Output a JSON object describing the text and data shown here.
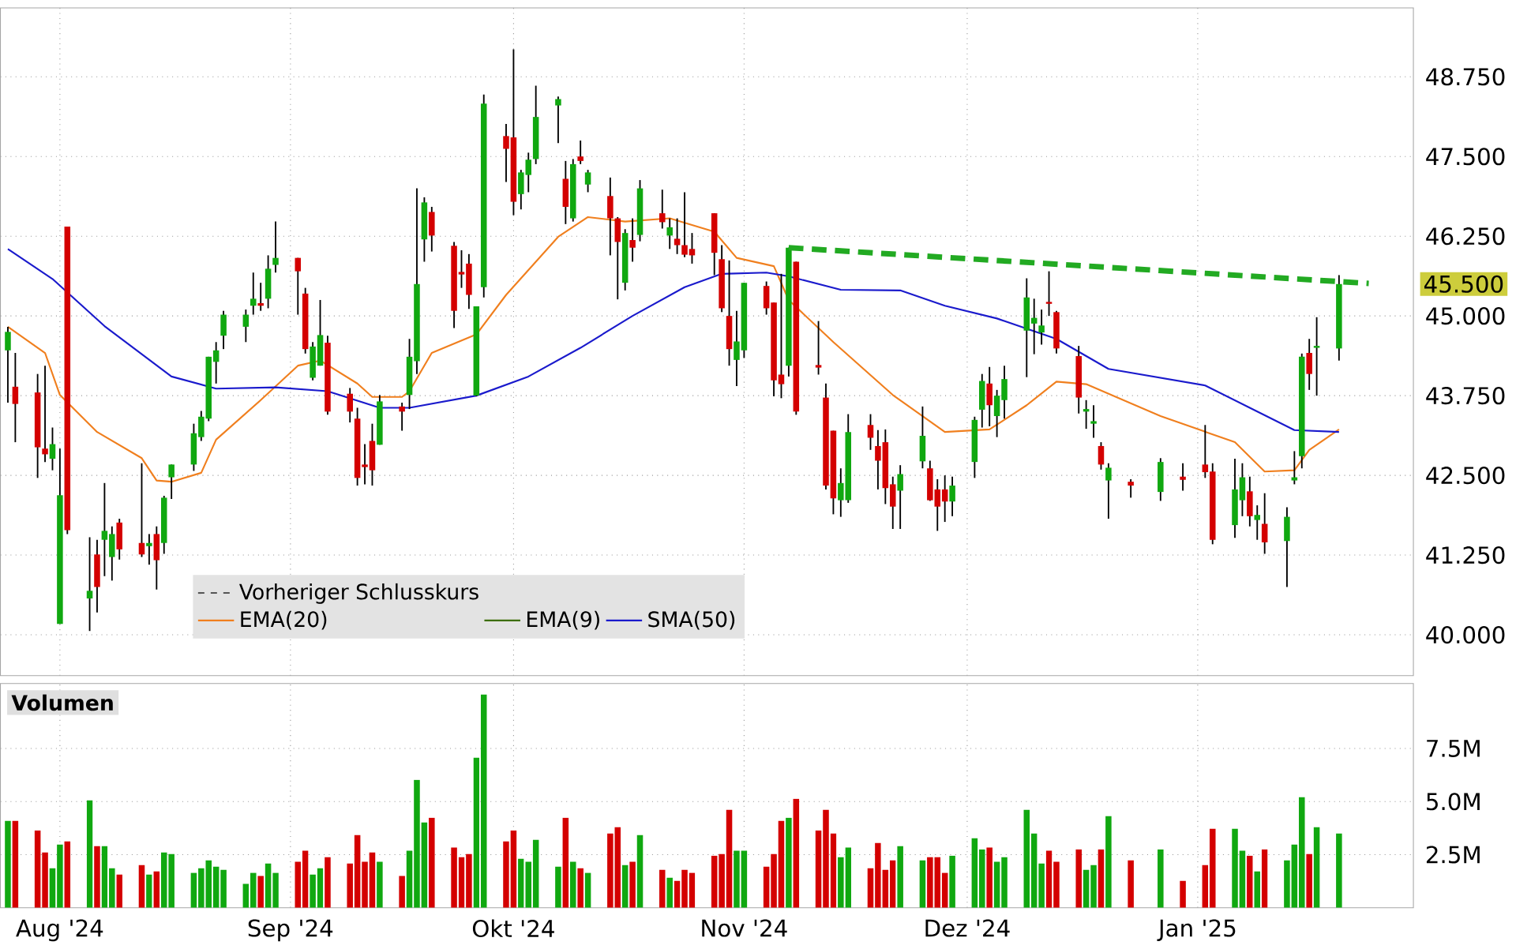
{
  "chart_data": [
    {
      "type": "candlestick",
      "x": [
        "2024-07-25",
        "2024-07-26",
        "2024-07-29",
        "2024-07-30",
        "2024-07-31",
        "2024-08-01",
        "2024-08-02",
        "2024-08-05",
        "2024-08-06",
        "2024-08-07",
        "2024-08-08",
        "2024-08-09",
        "2024-08-12",
        "2024-08-13",
        "2024-08-14",
        "2024-08-15",
        "2024-08-16",
        "2024-08-19",
        "2024-08-20",
        "2024-08-21",
        "2024-08-22",
        "2024-08-23",
        "2024-08-26",
        "2024-08-27",
        "2024-08-28",
        "2024-08-29",
        "2024-08-30",
        "2024-09-02",
        "2024-09-03",
        "2024-09-04",
        "2024-09-05",
        "2024-09-06",
        "2024-09-09",
        "2024-09-10",
        "2024-09-11",
        "2024-09-12",
        "2024-09-13",
        "2024-09-16",
        "2024-09-17",
        "2024-09-18",
        "2024-09-19",
        "2024-09-20",
        "2024-09-23",
        "2024-09-24",
        "2024-09-25",
        "2024-09-26",
        "2024-09-27",
        "2024-09-30",
        "2024-10-01",
        "2024-10-02",
        "2024-10-03",
        "2024-10-04",
        "2024-10-07",
        "2024-10-08",
        "2024-10-09",
        "2024-10-10",
        "2024-10-11",
        "2024-10-14",
        "2024-10-15",
        "2024-10-16",
        "2024-10-17",
        "2024-10-18",
        "2024-10-21",
        "2024-10-22",
        "2024-10-23",
        "2024-10-24",
        "2024-10-25",
        "2024-10-28",
        "2024-10-29",
        "2024-10-30",
        "2024-10-31",
        "2024-11-01",
        "2024-11-04",
        "2024-11-05",
        "2024-11-06",
        "2024-11-07",
        "2024-11-08",
        "2024-11-11",
        "2024-11-12",
        "2024-11-13",
        "2024-11-14",
        "2024-11-15",
        "2024-11-18",
        "2024-11-19",
        "2024-11-20",
        "2024-11-21",
        "2024-11-22",
        "2024-11-25",
        "2024-11-26",
        "2024-11-27",
        "2024-11-28",
        "2024-11-29",
        "2024-12-02",
        "2024-12-03",
        "2024-12-04",
        "2024-12-05",
        "2024-12-06",
        "2024-12-09",
        "2024-12-10",
        "2024-12-11",
        "2024-12-12",
        "2024-12-13",
        "2024-12-16",
        "2024-12-17",
        "2024-12-18",
        "2024-12-19",
        "2024-12-20",
        "2024-12-23",
        "2024-12-27",
        "2024-12-30",
        "2025-01-02",
        "2025-01-03",
        "2025-01-06",
        "2025-01-07",
        "2025-01-08",
        "2025-01-09",
        "2025-01-10",
        "2025-01-13",
        "2025-01-14",
        "2025-01-15",
        "2025-01-16",
        "2025-01-17",
        "2025-01-20"
      ],
      "ohlc": [
        [
          44.46,
          44.83,
          43.64,
          44.75
        ],
        [
          43.89,
          44.42,
          43.02,
          43.62
        ],
        [
          43.8,
          44.09,
          42.46,
          42.94
        ],
        [
          42.92,
          44.22,
          42.71,
          42.83
        ],
        [
          42.76,
          43.25,
          42.58,
          42.99
        ],
        [
          40.17,
          42.92,
          40.17,
          42.19
        ],
        [
          46.4,
          46.4,
          41.58,
          41.64
        ],
        [
          40.57,
          41.53,
          40.06,
          40.69
        ],
        [
          41.26,
          41.49,
          40.35,
          40.75
        ],
        [
          41.49,
          42.38,
          40.92,
          41.63
        ],
        [
          41.22,
          41.7,
          40.85,
          41.58
        ],
        [
          41.76,
          41.82,
          41.18,
          41.34
        ],
        [
          41.44,
          42.69,
          41.22,
          41.26
        ],
        [
          41.39,
          41.58,
          41.1,
          41.44
        ],
        [
          41.58,
          41.7,
          40.71,
          41.17
        ],
        [
          41.44,
          42.18,
          41.27,
          42.15
        ],
        [
          42.47,
          42.67,
          42.13,
          42.67
        ],
        [
          42.67,
          43.31,
          42.57,
          43.16
        ],
        [
          43.1,
          43.51,
          43.04,
          43.42
        ],
        [
          43.39,
          44.36,
          43.35,
          44.36
        ],
        [
          44.28,
          44.59,
          43.94,
          44.46
        ],
        [
          44.69,
          45.08,
          44.48,
          45.02
        ],
        [
          44.83,
          45.1,
          44.59,
          45.02
        ],
        [
          45.16,
          45.68,
          45.02,
          45.27
        ],
        [
          45.2,
          45.52,
          45.08,
          45.16
        ],
        [
          45.27,
          45.95,
          45.12,
          45.74
        ],
        [
          45.8,
          46.48,
          45.68,
          45.91
        ],
        [
          45.91,
          45.91,
          45.02,
          45.7
        ],
        [
          45.35,
          45.44,
          44.41,
          44.48
        ],
        [
          44.03,
          44.59,
          43.99,
          44.52
        ],
        [
          44.22,
          45.25,
          44.22,
          44.7
        ],
        [
          44.58,
          44.69,
          43.45,
          43.5
        ],
        [
          43.78,
          43.87,
          43.33,
          43.5
        ],
        [
          43.39,
          43.56,
          42.34,
          42.46
        ],
        [
          42.67,
          42.99,
          42.36,
          42.63
        ],
        [
          43.04,
          43.31,
          42.34,
          42.58
        ],
        [
          42.98,
          43.76,
          42.98,
          43.66
        ],
        [
          43.58,
          43.64,
          43.2,
          43.5
        ],
        [
          43.76,
          44.64,
          43.54,
          44.36
        ],
        [
          44.29,
          47.0,
          44.09,
          45.5
        ],
        [
          46.2,
          46.86,
          45.85,
          46.78
        ],
        [
          46.63,
          46.71,
          46.01,
          46.26
        ],
        [
          46.1,
          46.16,
          44.81,
          45.08
        ],
        [
          45.69,
          46.03,
          45.44,
          45.65
        ],
        [
          45.82,
          45.97,
          45.11,
          45.33
        ],
        [
          43.75,
          45.15,
          43.74,
          45.15
        ],
        [
          45.45,
          48.47,
          45.29,
          48.33
        ],
        [
          47.82,
          48.01,
          47.1,
          47.62
        ],
        [
          47.8,
          49.18,
          46.58,
          46.79
        ],
        [
          46.91,
          47.29,
          46.67,
          47.25
        ],
        [
          47.21,
          47.56,
          46.94,
          47.45
        ],
        [
          47.46,
          48.61,
          47.38,
          48.12
        ],
        [
          48.3,
          48.44,
          47.71,
          48.4
        ],
        [
          47.15,
          47.43,
          46.44,
          46.71
        ],
        [
          46.53,
          47.46,
          46.48,
          47.38
        ],
        [
          47.5,
          47.75,
          47.38,
          47.43
        ],
        [
          47.06,
          47.29,
          46.94,
          47.25
        ],
        [
          46.88,
          47.17,
          45.95,
          46.53
        ],
        [
          46.53,
          46.55,
          45.26,
          46.16
        ],
        [
          45.52,
          46.36,
          45.4,
          46.3
        ],
        [
          46.19,
          46.53,
          45.85,
          46.07
        ],
        [
          46.27,
          47.13,
          46.17,
          47.0
        ],
        [
          46.61,
          46.98,
          46.37,
          46.47
        ],
        [
          46.26,
          46.53,
          46.05,
          46.39
        ],
        [
          46.21,
          46.53,
          45.97,
          46.11
        ],
        [
          46.11,
          46.94,
          45.92,
          45.96
        ],
        [
          46.05,
          46.3,
          45.82,
          45.95
        ],
        [
          46.61,
          46.61,
          45.64,
          45.99
        ],
        [
          45.89,
          46.11,
          45.06,
          45.12
        ],
        [
          45.0,
          45.87,
          44.22,
          44.48
        ],
        [
          44.31,
          45.08,
          43.9,
          44.6
        ],
        [
          44.46,
          45.52,
          44.34,
          45.52
        ],
        [
          45.47,
          45.54,
          45.02,
          45.12
        ],
        [
          45.21,
          45.21,
          43.74,
          43.99
        ],
        [
          44.08,
          45.66,
          43.71,
          43.93
        ],
        [
          44.22,
          46.07,
          44.05,
          46.07
        ],
        [
          45.85,
          45.85,
          43.45,
          43.5
        ],
        [
          44.23,
          44.92,
          44.08,
          44.19
        ],
        [
          43.72,
          43.94,
          42.28,
          42.34
        ],
        [
          43.2,
          43.2,
          41.89,
          42.14
        ],
        [
          42.11,
          42.61,
          41.85,
          42.38
        ],
        [
          42.11,
          43.46,
          42.07,
          43.18
        ],
        [
          43.29,
          43.46,
          42.9,
          43.09
        ],
        [
          42.96,
          43.21,
          42.28,
          42.73
        ],
        [
          43.02,
          43.22,
          42.05,
          42.3
        ],
        [
          42.36,
          42.48,
          41.66,
          42.01
        ],
        [
          42.26,
          42.66,
          41.66,
          42.52
        ],
        [
          42.72,
          43.58,
          42.61,
          43.12
        ],
        [
          42.61,
          42.73,
          42.1,
          42.11
        ],
        [
          42.28,
          42.44,
          41.63,
          42.01
        ],
        [
          42.28,
          42.5,
          41.77,
          42.09
        ],
        [
          42.09,
          42.48,
          41.86,
          42.34
        ],
        [
          42.71,
          43.42,
          42.46,
          43.37
        ],
        [
          43.53,
          44.09,
          43.25,
          43.98
        ],
        [
          43.94,
          44.2,
          43.27,
          43.6
        ],
        [
          43.43,
          43.84,
          43.1,
          43.75
        ],
        [
          43.68,
          44.22,
          43.39,
          44.01
        ],
        [
          44.77,
          45.59,
          44.04,
          45.29
        ],
        [
          44.88,
          45.27,
          44.4,
          44.97
        ],
        [
          44.74,
          45.1,
          44.55,
          44.85
        ],
        [
          45.22,
          45.7,
          45.0,
          45.19
        ],
        [
          45.06,
          45.08,
          44.41,
          44.49
        ],
        [
          44.37,
          44.53,
          43.47,
          43.72
        ],
        [
          43.5,
          43.68,
          43.23,
          43.54
        ],
        [
          43.31,
          43.6,
          43.09,
          43.35
        ],
        [
          42.96,
          43.02,
          42.59,
          42.67
        ],
        [
          42.42,
          42.69,
          41.82,
          42.62
        ],
        [
          42.4,
          42.44,
          42.15,
          42.34
        ],
        [
          42.24,
          42.77,
          42.1,
          42.71
        ],
        [
          42.48,
          42.69,
          42.26,
          42.43
        ],
        [
          42.67,
          43.29,
          42.46,
          42.55
        ],
        [
          42.56,
          42.69,
          41.42,
          41.49
        ],
        [
          41.72,
          42.76,
          41.52,
          42.28
        ],
        [
          42.11,
          42.69,
          41.86,
          42.47
        ],
        [
          42.25,
          42.48,
          41.7,
          41.86
        ],
        [
          41.8,
          42.03,
          41.49,
          41.88
        ],
        [
          41.74,
          42.22,
          41.27,
          41.45
        ],
        [
          41.47,
          42.0,
          40.75,
          41.85
        ],
        [
          42.42,
          42.88,
          42.36,
          42.47
        ],
        [
          42.8,
          44.41,
          42.61,
          44.36
        ],
        [
          44.42,
          44.64,
          43.84,
          44.09
        ],
        [
          44.5,
          44.98,
          43.75,
          44.53
        ],
        [
          44.49,
          45.64,
          44.3,
          45.5
        ]
      ],
      "colors": [
        "#10a810",
        "#d40000",
        "#d40000",
        "#d40000",
        "#10a810",
        "#10a810",
        "#d40000",
        "#10a810",
        "#d40000",
        "#10a810",
        "#10a810",
        "#d40000",
        "#d40000",
        "#10a810",
        "#d40000",
        "#10a810",
        "#10a810",
        "#10a810",
        "#10a810",
        "#10a810",
        "#10a810",
        "#10a810",
        "#10a810",
        "#10a810",
        "#d40000",
        "#10a810",
        "#10a810",
        "#d40000",
        "#d40000",
        "#10a810",
        "#10a810",
        "#d40000",
        "#d40000",
        "#d40000",
        "#d40000",
        "#d40000",
        "#10a810",
        "#d40000",
        "#10a810",
        "#10a810",
        "#10a810",
        "#d40000",
        "#d40000",
        "#d40000",
        "#d40000",
        "#10a810",
        "#10a810",
        "#d40000",
        "#d40000",
        "#10a810",
        "#10a810",
        "#10a810",
        "#10a810",
        "#d40000",
        "#10a810",
        "#d40000",
        "#10a810",
        "#d40000",
        "#d40000",
        "#10a810",
        "#d40000",
        "#10a810",
        "#d40000",
        "#10a810",
        "#d40000",
        "#d40000",
        "#d40000",
        "#d40000",
        "#d40000",
        "#d40000",
        "#10a810",
        "#10a810",
        "#d40000",
        "#d40000",
        "#d40000",
        "#10a810",
        "#d40000",
        "#d40000",
        "#d40000",
        "#d40000",
        "#10a810",
        "#10a810",
        "#d40000",
        "#d40000",
        "#d40000",
        "#d40000",
        "#10a810",
        "#10a810",
        "#d40000",
        "#d40000",
        "#d40000",
        "#10a810",
        "#10a810",
        "#10a810",
        "#d40000",
        "#10a810",
        "#10a810",
        "#10a810",
        "#10a810",
        "#10a810",
        "#d40000",
        "#d40000",
        "#d40000",
        "#10a810",
        "#10a810",
        "#d40000",
        "#10a810",
        "#d40000",
        "#10a810",
        "#d40000",
        "#d40000",
        "#d40000",
        "#10a810",
        "#10a810",
        "#d40000",
        "#10a810",
        "#d40000",
        "#10a810",
        "#10a810",
        "#10a810",
        "#d40000",
        "#10a810",
        "#10a810"
      ],
      "series": [
        {
          "type": "line",
          "name": "Vorheriger Schlusskurs",
          "color": "#555555",
          "line_style": "dashed",
          "values": [
            null,
            null,
            null,
            null,
            null,
            null,
            null,
            null,
            null,
            null,
            null,
            null,
            null,
            null,
            null,
            null,
            null,
            null,
            null,
            null,
            null,
            null,
            null,
            null,
            null,
            null,
            null,
            null,
            null,
            null,
            null,
            null,
            null,
            null,
            null,
            null,
            null,
            null,
            null,
            null,
            null,
            null,
            null,
            null,
            null,
            null,
            null,
            null,
            null,
            null,
            null,
            null,
            null,
            null,
            null,
            null,
            null,
            null,
            null,
            null,
            null,
            null,
            null,
            null,
            null,
            null,
            null,
            null,
            null,
            null,
            null,
            null,
            null,
            null,
            null,
            null,
            null,
            null,
            null,
            null,
            null,
            null,
            null,
            null,
            null,
            null,
            null,
            null,
            null,
            null,
            null,
            null,
            null,
            null,
            null,
            null,
            null,
            null,
            null,
            null,
            null,
            null,
            null,
            null,
            null,
            null,
            null,
            null,
            null,
            null,
            null,
            null,
            null,
            null,
            null,
            null,
            null,
            null,
            null,
            null,
            null,
            null,
            null
          ]
        },
        {
          "type": "line",
          "name": "EMA(20)",
          "color": "#f07f1e",
          "x": [
            "2024-07-25",
            "2024-07-30",
            "2024-08-01",
            "2024-08-06",
            "2024-08-12",
            "2024-08-14",
            "2024-08-16",
            "2024-08-20",
            "2024-08-22",
            "2024-08-28",
            "2024-09-02",
            "2024-09-05",
            "2024-09-10",
            "2024-09-12",
            "2024-09-16",
            "2024-09-17",
            "2024-09-20",
            "2024-09-26",
            "2024-09-30",
            "2024-10-07",
            "2024-10-11",
            "2024-10-16",
            "2024-10-22",
            "2024-10-28",
            "2024-10-31",
            "2024-11-05",
            "2024-11-07",
            "2024-11-13",
            "2024-11-21",
            "2024-11-28",
            "2024-12-04",
            "2024-12-09",
            "2024-12-13",
            "2024-12-17",
            "2024-12-27",
            "2025-01-06",
            "2025-01-10",
            "2025-01-14",
            "2025-01-16",
            "2025-01-20"
          ],
          "values": [
            44.83,
            44.42,
            43.76,
            43.18,
            42.77,
            42.42,
            42.4,
            42.54,
            43.06,
            43.68,
            44.22,
            44.3,
            43.94,
            43.73,
            43.73,
            43.82,
            44.42,
            44.71,
            45.33,
            46.24,
            46.55,
            46.48,
            46.53,
            46.32,
            45.91,
            45.78,
            45.25,
            44.59,
            43.76,
            43.18,
            43.22,
            43.6,
            43.97,
            43.93,
            43.43,
            43.02,
            42.56,
            42.58,
            42.9,
            43.22
          ]
        },
        {
          "type": "line",
          "name": "EMA(9)",
          "color": "#3c6e00",
          "values": [
            null,
            null,
            null,
            null,
            null,
            null,
            null,
            null,
            null,
            null,
            null,
            null,
            null,
            null,
            null,
            null,
            null,
            null,
            null,
            null,
            null,
            null,
            null,
            null,
            null,
            null,
            null,
            null,
            null,
            null,
            null,
            null,
            null,
            null,
            null,
            null,
            null,
            null,
            null,
            null,
            null,
            null,
            null,
            null,
            null,
            null,
            null,
            null,
            null,
            null,
            null,
            null,
            null,
            null,
            null,
            null,
            null,
            null,
            null,
            null,
            null,
            null,
            null,
            null,
            null,
            null,
            null,
            null,
            null,
            null,
            null,
            null,
            null,
            null,
            null,
            null,
            null,
            null,
            null,
            null,
            null,
            null,
            null,
            null,
            null,
            null,
            null,
            null,
            null,
            null,
            null,
            null,
            null,
            null,
            null,
            null,
            null,
            null,
            null,
            null,
            null,
            null,
            null,
            null,
            null,
            null,
            null,
            null,
            null,
            null,
            null,
            null,
            null,
            null,
            null,
            null,
            null,
            null,
            null,
            null,
            null,
            null,
            null
          ]
        },
        {
          "type": "line",
          "name": "SMA(50)",
          "color": "#1a1acc",
          "x": [
            "2024-07-25",
            "2024-07-31",
            "2024-08-07",
            "2024-08-16",
            "2024-08-22",
            "2024-08-30",
            "2024-09-06",
            "2024-09-13",
            "2024-09-17",
            "2024-09-26",
            "2024-10-03",
            "2024-10-10",
            "2024-10-17",
            "2024-10-24",
            "2024-10-29",
            "2024-11-04",
            "2024-11-07",
            "2024-11-14",
            "2024-11-22",
            "2024-11-28",
            "2024-12-05",
            "2024-12-13",
            "2024-12-20",
            "2025-01-02",
            "2025-01-08",
            "2025-01-14",
            "2025-01-20"
          ],
          "values": [
            46.05,
            45.58,
            44.84,
            44.05,
            43.86,
            43.88,
            43.82,
            43.56,
            43.56,
            43.75,
            44.05,
            44.5,
            45.0,
            45.45,
            45.66,
            45.68,
            45.62,
            45.41,
            45.4,
            45.16,
            44.96,
            44.64,
            44.17,
            43.91,
            43.56,
            43.21,
            43.18
          ]
        },
        {
          "type": "line",
          "color": "#22aa22",
          "line_style": "dashed",
          "x": [
            "2024-11-07",
            "2025-01-24"
          ],
          "values": [
            46.07,
            45.51
          ]
        }
      ],
      "annotations": [
        "45.500"
      ],
      "xlim": [
        "2024-07-24",
        "2025-01-30"
      ],
      "ylim": [
        39.36,
        49.83
      ],
      "xticks": [
        {
          "value": "2024-08-01",
          "label": null
        },
        {
          "value": "2024-09-01",
          "label": null
        },
        {
          "value": "2024-10-01",
          "label": null
        },
        {
          "value": "2024-11-01",
          "label": null
        },
        {
          "value": "2024-12-01",
          "label": null
        },
        {
          "value": "2025-01-01",
          "label": null
        }
      ],
      "yticks": [
        {
          "value": 40,
          "label": "40.000"
        },
        {
          "value": 41.25,
          "label": "41.250"
        },
        {
          "value": 42.5,
          "label": "42.500"
        },
        {
          "value": 43.75,
          "label": "43.750"
        },
        {
          "value": 45,
          "label": "45.000"
        },
        {
          "value": 46.25,
          "label": "46.250"
        },
        {
          "value": 47.5,
          "label": "47.500"
        },
        {
          "value": 48.75,
          "label": "48.750"
        }
      ],
      "grid": true,
      "legend": "bottom left",
      "tick_labels": "y"
    },
    {
      "type": "bar",
      "title": "Volumen",
      "x": [
        "2024-07-25",
        "2024-07-26",
        "2024-07-29",
        "2024-07-30",
        "2024-07-31",
        "2024-08-01",
        "2024-08-02",
        "2024-08-05",
        "2024-08-06",
        "2024-08-07",
        "2024-08-08",
        "2024-08-09",
        "2024-08-12",
        "2024-08-13",
        "2024-08-14",
        "2024-08-15",
        "2024-08-16",
        "2024-08-19",
        "2024-08-20",
        "2024-08-21",
        "2024-08-22",
        "2024-08-23",
        "2024-08-26",
        "2024-08-27",
        "2024-08-28",
        "2024-08-29",
        "2024-08-30",
        "2024-09-02",
        "2024-09-03",
        "2024-09-04",
        "2024-09-05",
        "2024-09-06",
        "2024-09-09",
        "2024-09-10",
        "2024-09-11",
        "2024-09-12",
        "2024-09-13",
        "2024-09-16",
        "2024-09-17",
        "2024-09-18",
        "2024-09-19",
        "2024-09-20",
        "2024-09-23",
        "2024-09-24",
        "2024-09-25",
        "2024-09-26",
        "2024-09-27",
        "2024-09-30",
        "2024-10-01",
        "2024-10-02",
        "2024-10-03",
        "2024-10-04",
        "2024-10-07",
        "2024-10-08",
        "2024-10-09",
        "2024-10-10",
        "2024-10-11",
        "2024-10-14",
        "2024-10-15",
        "2024-10-16",
        "2024-10-17",
        "2024-10-18",
        "2024-10-21",
        "2024-10-22",
        "2024-10-23",
        "2024-10-24",
        "2024-10-25",
        "2024-10-28",
        "2024-10-29",
        "2024-10-30",
        "2024-10-31",
        "2024-11-01",
        "2024-11-04",
        "2024-11-05",
        "2024-11-06",
        "2024-11-07",
        "2024-11-08",
        "2024-11-11",
        "2024-11-12",
        "2024-11-13",
        "2024-11-14",
        "2024-11-15",
        "2024-11-18",
        "2024-11-19",
        "2024-11-20",
        "2024-11-21",
        "2024-11-22",
        "2024-11-25",
        "2024-11-26",
        "2024-11-27",
        "2024-11-28",
        "2024-11-29",
        "2024-12-02",
        "2024-12-03",
        "2024-12-04",
        "2024-12-05",
        "2024-12-06",
        "2024-12-09",
        "2024-12-10",
        "2024-12-11",
        "2024-12-12",
        "2024-12-13",
        "2024-12-16",
        "2024-12-17",
        "2024-12-18",
        "2024-12-19",
        "2024-12-20",
        "2024-12-23",
        "2024-12-27",
        "2024-12-30",
        "2025-01-02",
        "2025-01-03",
        "2025-01-06",
        "2025-01-07",
        "2025-01-08",
        "2025-01-09",
        "2025-01-10",
        "2025-01-13",
        "2025-01-14",
        "2025-01-15",
        "2025-01-16",
        "2025-01-17",
        "2025-01-20"
      ],
      "values": [
        4.09,
        4.09,
        3.64,
        2.6,
        1.86,
        2.97,
        3.12,
        5.06,
        2.9,
        2.9,
        1.86,
        1.56,
        2.01,
        1.56,
        1.71,
        2.6,
        2.53,
        1.64,
        1.86,
        2.23,
        1.93,
        1.78,
        1.12,
        1.64,
        1.49,
        2.08,
        1.64,
        2.16,
        2.68,
        1.56,
        1.86,
        2.38,
        2.08,
        3.42,
        2.16,
        2.6,
        2.16,
        1.49,
        2.68,
        6.02,
        4.01,
        4.24,
        2.83,
        2.38,
        2.53,
        7.06,
        10.04,
        3.12,
        3.64,
        2.3,
        2.16,
        3.2,
        1.93,
        4.24,
        2.16,
        1.86,
        1.64,
        3.49,
        3.79,
        2.01,
        2.16,
        3.42,
        1.78,
        1.41,
        1.26,
        1.78,
        1.64,
        2.45,
        2.53,
        4.61,
        2.68,
        2.68,
        1.93,
        2.53,
        4.09,
        4.24,
        5.13,
        3.64,
        4.61,
        3.49,
        2.38,
        2.83,
        1.86,
        3.05,
        1.78,
        2.23,
        2.9,
        2.23,
        2.38,
        2.38,
        1.64,
        2.45,
        3.27,
        2.75,
        2.83,
        2.16,
        2.38,
        4.61,
        3.49,
        2.08,
        2.68,
        2.16,
        2.75,
        1.78,
        2.01,
        2.75,
        4.31,
        2.23,
        2.75,
        1.26,
        2.01,
        3.72,
        3.72,
        2.68,
        2.45,
        1.71,
        2.75,
        2.23,
        2.97,
        5.2,
        2.53,
        3.79,
        3.49
      ],
      "colors": [
        "#10a810",
        "#d40000",
        "#d40000",
        "#d40000",
        "#10a810",
        "#10a810",
        "#d40000",
        "#10a810",
        "#d40000",
        "#10a810",
        "#10a810",
        "#d40000",
        "#d40000",
        "#10a810",
        "#d40000",
        "#10a810",
        "#10a810",
        "#10a810",
        "#10a810",
        "#10a810",
        "#10a810",
        "#10a810",
        "#10a810",
        "#10a810",
        "#d40000",
        "#10a810",
        "#10a810",
        "#d40000",
        "#d40000",
        "#10a810",
        "#10a810",
        "#d40000",
        "#d40000",
        "#d40000",
        "#d40000",
        "#d40000",
        "#10a810",
        "#d40000",
        "#10a810",
        "#10a810",
        "#10a810",
        "#d40000",
        "#d40000",
        "#d40000",
        "#d40000",
        "#10a810",
        "#10a810",
        "#d40000",
        "#d40000",
        "#10a810",
        "#10a810",
        "#10a810",
        "#10a810",
        "#d40000",
        "#10a810",
        "#d40000",
        "#10a810",
        "#d40000",
        "#d40000",
        "#10a810",
        "#d40000",
        "#10a810",
        "#d40000",
        "#10a810",
        "#d40000",
        "#d40000",
        "#d40000",
        "#d40000",
        "#d40000",
        "#d40000",
        "#10a810",
        "#10a810",
        "#d40000",
        "#d40000",
        "#d40000",
        "#10a810",
        "#d40000",
        "#d40000",
        "#d40000",
        "#d40000",
        "#10a810",
        "#10a810",
        "#d40000",
        "#d40000",
        "#d40000",
        "#d40000",
        "#10a810",
        "#10a810",
        "#d40000",
        "#d40000",
        "#d40000",
        "#10a810",
        "#10a810",
        "#10a810",
        "#d40000",
        "#10a810",
        "#10a810",
        "#10a810",
        "#10a810",
        "#10a810",
        "#d40000",
        "#d40000",
        "#d40000",
        "#10a810",
        "#10a810",
        "#d40000",
        "#10a810",
        "#d40000",
        "#10a810",
        "#d40000",
        "#d40000",
        "#d40000",
        "#10a810",
        "#10a810",
        "#d40000",
        "#10a810",
        "#d40000",
        "#10a810",
        "#10a810",
        "#10a810",
        "#d40000",
        "#10a810",
        "#10a810"
      ],
      "xlim": [
        "2024-07-24",
        "2025-01-30"
      ],
      "ylim": [
        0,
        10.56
      ],
      "xticks": [
        {
          "value": "2024-08-01",
          "label": "Aug '24"
        },
        {
          "value": "2024-09-01",
          "label": "Sep '24"
        },
        {
          "value": "2024-10-01",
          "label": "Okt '24"
        },
        {
          "value": "2024-11-01",
          "label": "Nov '24"
        },
        {
          "value": "2024-12-01",
          "label": "Dez '24"
        },
        {
          "value": "2025-01-01",
          "label": "Jan '25"
        }
      ],
      "yticks": [
        {
          "value": 2.5,
          "label": "2.5M"
        },
        {
          "value": 5,
          "label": "5.0M"
        },
        {
          "value": 7.5,
          "label": "7.5M"
        }
      ],
      "grid": true
    }
  ]
}
